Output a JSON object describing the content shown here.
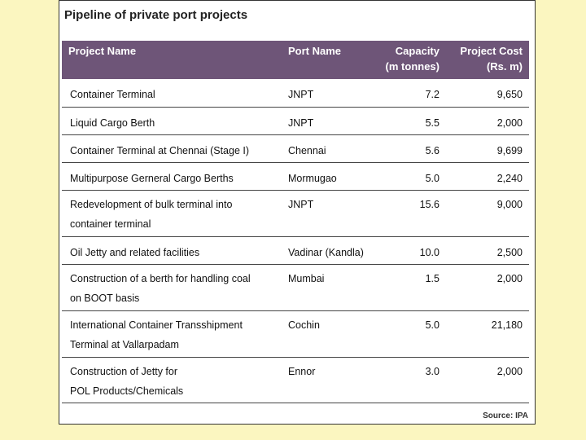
{
  "title": "Pipeline of private port projects",
  "columns": {
    "project_name": "Project Name",
    "port_name": "Port Name",
    "capacity": "Capacity",
    "capacity_unit": "(m tonnes)",
    "project_cost": "Project Cost",
    "project_cost_unit": "(Rs. m)"
  },
  "rows": [
    {
      "project": "Container Terminal",
      "project_line2": "",
      "port": "JNPT",
      "capacity": "7.2",
      "cost": "9,650"
    },
    {
      "project": "Liquid Cargo Berth",
      "project_line2": "",
      "port": "JNPT",
      "capacity": "5.5",
      "cost": "2,000"
    },
    {
      "project": "Container Terminal at Chennai (Stage I)",
      "project_line2": "",
      "port": "Chennai",
      "capacity": "5.6",
      "cost": "9,699"
    },
    {
      "project": "Multipurpose Gerneral Cargo Berths",
      "project_line2": "",
      "port": "Mormugao",
      "capacity": "5.0",
      "cost": "2,240"
    },
    {
      "project": "Redevelopment of bulk terminal into",
      "project_line2": "container terminal",
      "port": "JNPT",
      "capacity": "15.6",
      "cost": "9,000"
    },
    {
      "project": "Oil Jetty and related facilities",
      "project_line2": "",
      "port": "Vadinar (Kandla)",
      "capacity": "10.0",
      "cost": "2,500"
    },
    {
      "project": "Construction of a berth for handling coal",
      "project_line2": "on BOOT basis",
      "port": "Mumbai",
      "capacity": "1.5",
      "cost": "2,000"
    },
    {
      "project": "International Container Transshipment",
      "project_line2": "Terminal at Vallarpadam",
      "port": "Cochin",
      "capacity": "5.0",
      "cost": "21,180"
    },
    {
      "project": "Construction of Jetty for",
      "project_line2": "POL Products/Chemicals",
      "port": "Ennor",
      "capacity": "3.0",
      "cost": "2,000"
    }
  ],
  "source": "Source: IPA"
}
